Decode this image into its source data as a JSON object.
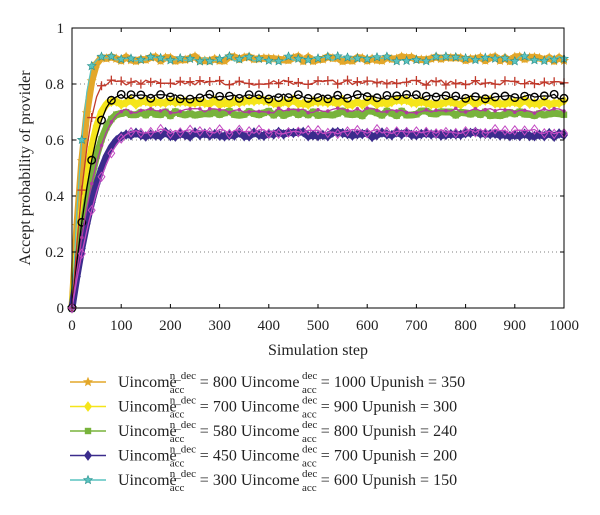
{
  "chart_data": {
    "type": "line",
    "title": "",
    "xlabel": "Simulation step",
    "ylabel": "Accept probability of provider",
    "xlim": [
      0,
      1000
    ],
    "ylim": [
      0,
      1
    ],
    "xticks": [
      "0",
      "100",
      "200",
      "300",
      "400",
      "500",
      "600",
      "700",
      "800",
      "900",
      "1000"
    ],
    "yticks": [
      "0",
      "0.2",
      "0.4",
      "0.6",
      "0.8",
      "1"
    ],
    "grid": "horizontal-dotted",
    "legend_position": "below",
    "series": [
      {
        "name": "Uincome_acc^{n_dec} = 800 Uincome_acc^{dec} = 1000 Upunish = 350",
        "plateau": 0.89,
        "rise_to": 60,
        "color": "#e3a72a",
        "marker": "star"
      },
      {
        "name": "Uincome_acc^{n_dec} = 700 Uincome_acc^{dec} = 900 Upunish = 300",
        "plateau": 0.735,
        "rise_to": 80,
        "color": "#f5e51a",
        "marker": "diamond"
      },
      {
        "name": "Uincome_acc^{n_dec} = 580 Uincome_acc^{dec} = 800 Upunish = 240",
        "plateau": 0.695,
        "rise_to": 100,
        "color": "#78b33c",
        "marker": "square"
      },
      {
        "name": "Uincome_acc^{n_dec} = 450 Uincome_acc^{dec} = 700 Upunish = 200",
        "plateau": 0.62,
        "rise_to": 115,
        "color": "#3b2c8c",
        "marker": "diamond"
      },
      {
        "name": "Uincome_acc^{n_dec} = 300 Uincome_acc^{dec} = 600 Upunish = 150",
        "plateau": 0.89,
        "rise_to": 50,
        "color": "#5ac3c0",
        "marker": "star-open"
      },
      {
        "name": "",
        "plateau": 0.805,
        "rise_to": 70,
        "color": "#c0392b",
        "marker": "plus"
      },
      {
        "name": "",
        "plateau": 0.755,
        "rise_to": 95,
        "color": "#000000",
        "marker": "circle"
      },
      {
        "name": "",
        "plateau": 0.705,
        "rise_to": 110,
        "color": "#b03aa0",
        "marker": "dot"
      },
      {
        "name": "",
        "plateau": 0.63,
        "rise_to": 130,
        "color": "#c34bc3",
        "marker": "diamond-open"
      }
    ],
    "legend": [
      {
        "prefix": "Uincome",
        "sup1": "n_dec",
        "sub1": "acc",
        "mid1": " = 800 Uincome",
        "sup2": "dec",
        "sub2": "acc",
        "tail": " = 1000 Upunish = 350",
        "color": "#e3a72a",
        "marker": "star"
      },
      {
        "prefix": "Uincome",
        "sup1": "n_dec",
        "sub1": "acc",
        "mid1": " = 700 Uincome",
        "sup2": "dec",
        "sub2": "acc",
        "tail": " = 900 Upunish = 300",
        "color": "#f5e51a",
        "marker": "diamond"
      },
      {
        "prefix": "Uincome",
        "sup1": "n_dec",
        "sub1": "acc",
        "mid1": " = 580 Uincome",
        "sup2": "dec",
        "sub2": "acc",
        "tail": " = 800 Upunish = 240",
        "color": "#78b33c",
        "marker": "square"
      },
      {
        "prefix": "Uincome",
        "sup1": "n_dec",
        "sub1": "acc",
        "mid1": " = 450 Uincome",
        "sup2": "dec",
        "sub2": "acc",
        "tail": " = 700 Upunish = 200",
        "color": "#3b2c8c",
        "marker": "diamond"
      },
      {
        "prefix": "Uincome",
        "sup1": "n_dec",
        "sub1": "acc",
        "mid1": " = 300 Uincome",
        "sup2": "dec",
        "sub2": "acc",
        "tail": " = 600 Upunish = 150",
        "color": "#5ac3c0",
        "marker": "star-open"
      }
    ]
  }
}
